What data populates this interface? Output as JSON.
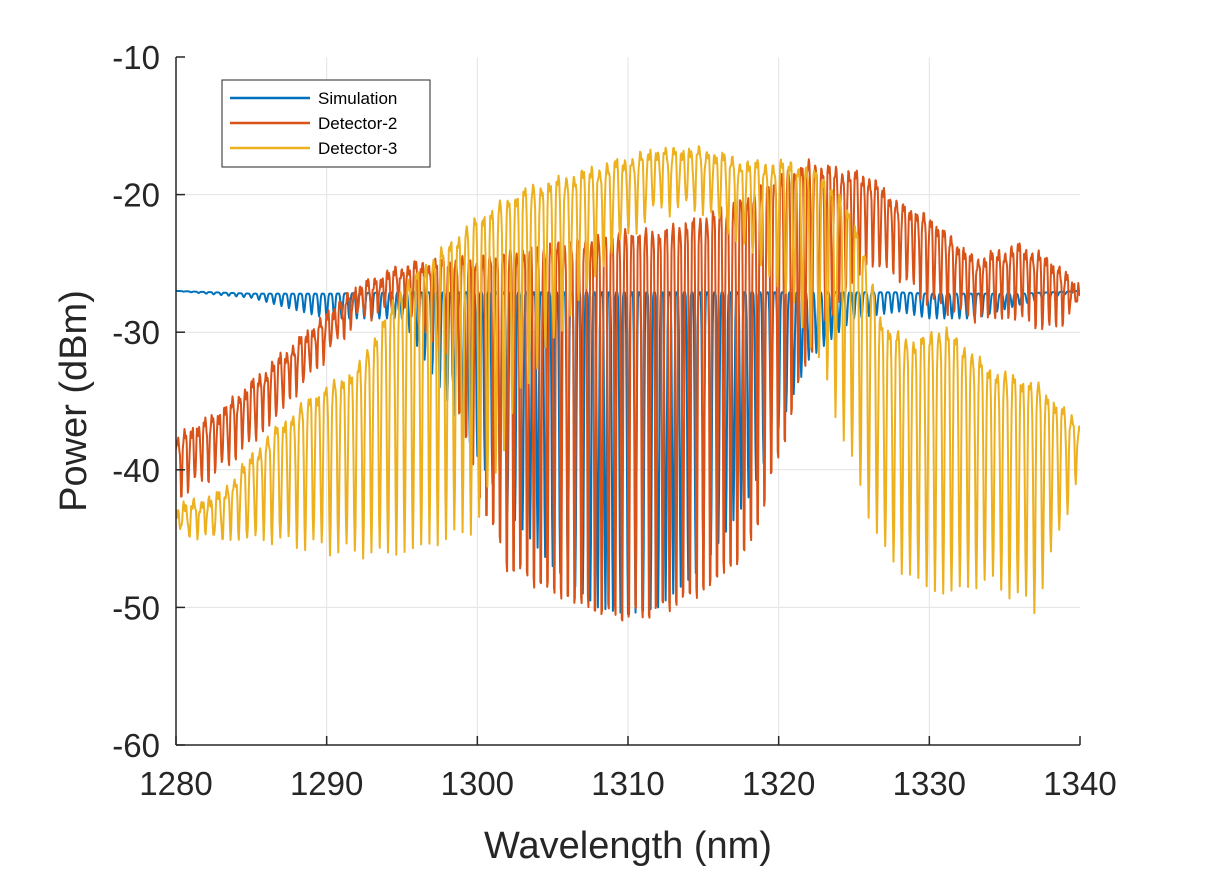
{
  "chart_data": {
    "type": "line",
    "title": "",
    "xlabel": "Wavelength (nm)",
    "ylabel": "Power (dBm)",
    "xlim": [
      1280,
      1340
    ],
    "ylim": [
      -60,
      -10
    ],
    "xticks": [
      1280,
      1290,
      1300,
      1310,
      1320,
      1330,
      1340
    ],
    "yticks": [
      -60,
      -50,
      -40,
      -30,
      -20,
      -10
    ],
    "xtick_labels": [
      "1280",
      "1290",
      "1300",
      "1310",
      "1320",
      "1330",
      "1340"
    ],
    "ytick_labels": [
      "-60",
      "-50",
      "-40",
      "-30",
      "-20",
      "-10"
    ],
    "grid": true,
    "legend_position": "top-left",
    "series": [
      {
        "name": "Simulation",
        "color": "#0072BD",
        "fringe_period_nm": 0.5,
        "x": [
          1280,
          1285,
          1290,
          1295,
          1298,
          1300,
          1302,
          1305,
          1308,
          1310,
          1312,
          1315,
          1318,
          1320,
          1322,
          1325,
          1328,
          1330,
          1333,
          1336,
          1340
        ],
        "upper": [
          -27,
          -27.2,
          -27.2,
          -27.1,
          -27.1,
          -27.1,
          -27.1,
          -27.1,
          -27.1,
          -27.1,
          -27.1,
          -27.1,
          -27.1,
          -27.1,
          -27.1,
          -27.1,
          -27.1,
          -27.2,
          -27.2,
          -27.2,
          -27
        ],
        "lower": [
          -27,
          -27.5,
          -29,
          -29,
          -35,
          -39,
          -43,
          -47,
          -50,
          -50.5,
          -50,
          -47,
          -42,
          -37,
          -32,
          -29,
          -28.5,
          -29,
          -29,
          -28,
          -27
        ]
      },
      {
        "name": "Detector-2",
        "color": "#D95319",
        "fringe_period_nm": 0.45,
        "x": [
          1280,
          1283,
          1286,
          1289,
          1292,
          1295,
          1298,
          1300,
          1302,
          1305,
          1308,
          1310,
          1312,
          1315,
          1318,
          1320,
          1322,
          1324,
          1326,
          1328,
          1330,
          1333,
          1336,
          1338,
          1340
        ],
        "upper": [
          -38,
          -36,
          -33,
          -30,
          -27,
          -25.5,
          -25,
          -25,
          -24.5,
          -24,
          -23.5,
          -23,
          -23,
          -22,
          -20.5,
          -19,
          -18,
          -18.5,
          -19,
          -21,
          -22,
          -25,
          -24,
          -25,
          -27
        ],
        "lower": [
          -42,
          -40,
          -37,
          -33,
          -29,
          -28,
          -32,
          -42,
          -48,
          -50,
          -51.5,
          -52,
          -51.5,
          -50,
          -47,
          -40,
          -32,
          -28,
          -25,
          -26,
          -28,
          -29,
          -29,
          -30,
          -28
        ]
      },
      {
        "name": "Detector-3",
        "color": "#EDB120",
        "fringe_period_nm": 0.55,
        "x": [
          1280,
          1283,
          1286,
          1289,
          1292,
          1295,
          1298,
          1300,
          1303,
          1306,
          1309,
          1312,
          1315,
          1318,
          1321,
          1323,
          1325,
          1327,
          1329,
          1331,
          1334,
          1337,
          1340
        ],
        "upper": [
          -43,
          -42,
          -38,
          -35,
          -33,
          -27,
          -24,
          -22,
          -20,
          -19,
          -18,
          -17,
          -17,
          -18,
          -18,
          -19,
          -22,
          -30,
          -31,
          -30,
          -33,
          -34,
          -37
        ],
        "lower": [
          -44.5,
          -45,
          -45,
          -45.5,
          -46,
          -46,
          -45,
          -44,
          -34,
          -29,
          -24,
          -21,
          -21,
          -24,
          -28,
          -33,
          -40,
          -46,
          -48,
          -49,
          -48,
          -50,
          -40
        ]
      }
    ]
  }
}
